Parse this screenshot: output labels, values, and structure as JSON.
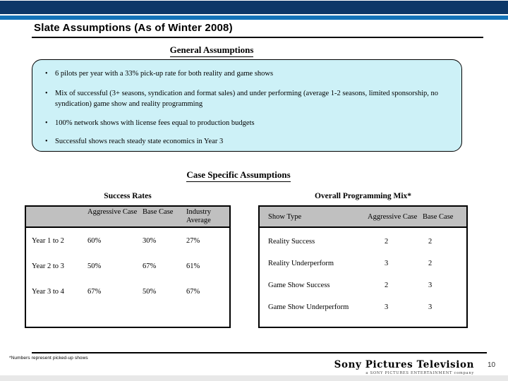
{
  "slide": {
    "title": "Slate Assumptions (As of Winter 2008)"
  },
  "general": {
    "heading": "General Assumptions",
    "bullet_glyph": "•",
    "bullets": [
      "6 pilots per year with a 33% pick-up rate for both reality and game shows",
      "Mix of successful (3+ seasons, syndication and format sales) and under performing (average 1-2 seasons, limited sponsorship, no syndication) game show and reality programming",
      "100% network shows with license fees equal to production budgets",
      "Successful shows reach steady state economics in Year 3"
    ]
  },
  "case_specific": {
    "heading": "Case Specific Assumptions"
  },
  "success_table": {
    "title": "Success Rates",
    "columns": [
      "",
      "Aggressive Case",
      "Base Case",
      "Industry Average"
    ],
    "rows": [
      {
        "label": "Year 1 to 2",
        "values": [
          "60%",
          "30%",
          "27%"
        ]
      },
      {
        "label": "Year 2 to 3",
        "values": [
          "50%",
          "67%",
          "61%"
        ]
      },
      {
        "label": "Year 3 to 4",
        "values": [
          "67%",
          "50%",
          "67%"
        ]
      }
    ]
  },
  "mix_table": {
    "title": "Overall Programming Mix*",
    "columns": [
      "Show Type",
      "Aggressive Case",
      "Base Case"
    ],
    "rows": [
      {
        "label": "Reality Success",
        "values": [
          "2",
          "2"
        ]
      },
      {
        "label": "Reality Underperform",
        "values": [
          "3",
          "2"
        ]
      },
      {
        "label": "Game Show Success",
        "values": [
          "2",
          "3"
        ]
      },
      {
        "label": "Game Show Underperform",
        "values": [
          "3",
          "3"
        ]
      }
    ]
  },
  "footer": {
    "footnote": "*Numbers represent picked-up shows",
    "logo_main": "Sony Pictures Television",
    "logo_sub": "a SONY PICTURES ENTERTAINMENT company",
    "page_number": "10"
  },
  "colors": {
    "navy": "#0d3768",
    "accent": "#1373b9",
    "boxfill": "#cdf1f7",
    "hdrgray": "#c0c0c0",
    "strip": "#e8e8e8"
  }
}
